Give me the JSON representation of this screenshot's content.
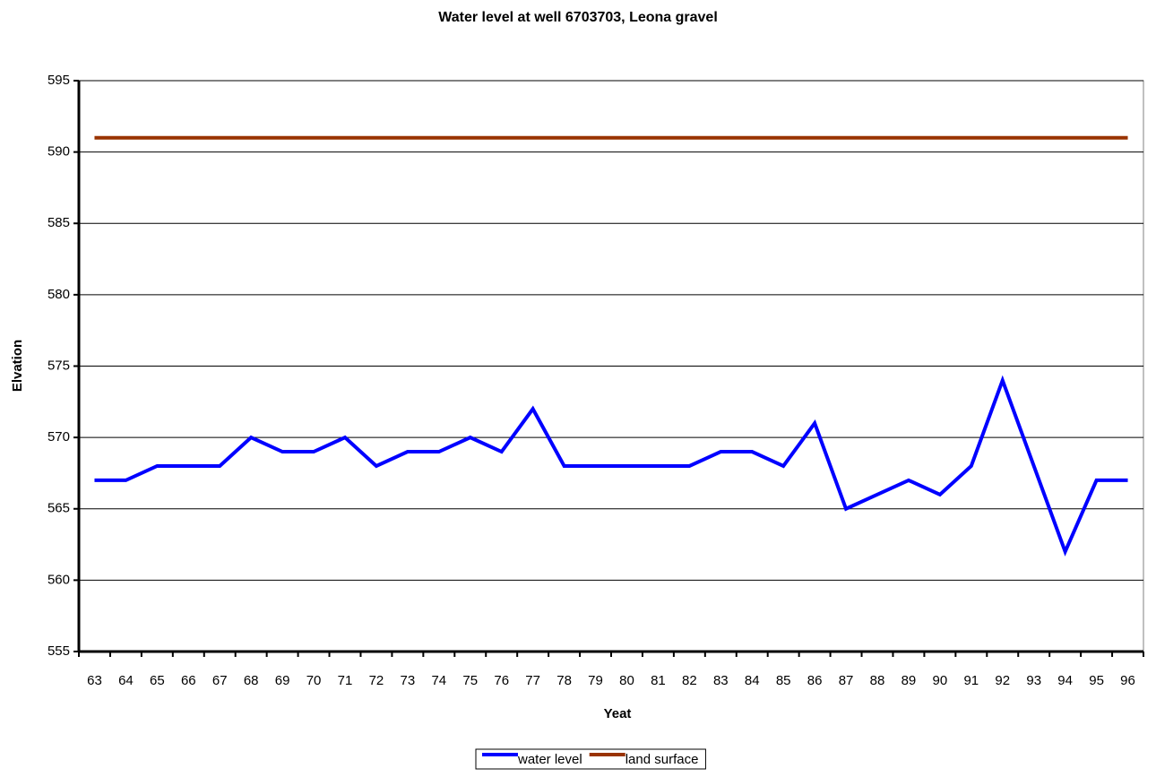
{
  "chart_data": {
    "type": "line",
    "title": "Water level at well 6703703, Leona gravel",
    "x_label": "Yeat",
    "y_label": "Elvation",
    "categories": [
      "63",
      "64",
      "65",
      "66",
      "67",
      "68",
      "69",
      "70",
      "71",
      "72",
      "73",
      "74",
      "75",
      "76",
      "77",
      "78",
      "79",
      "80",
      "81",
      "82",
      "83",
      "84",
      "85",
      "86",
      "87",
      "88",
      "89",
      "90",
      "91",
      "92",
      "93",
      "94",
      "95",
      "96"
    ],
    "series": [
      {
        "name": "water level",
        "color": "#0000ff",
        "values": [
          567,
          567,
          568,
          568,
          568,
          570,
          569,
          569,
          570,
          568,
          569,
          569,
          570,
          569,
          572,
          568,
          568,
          568,
          568,
          568,
          569,
          569,
          568,
          571,
          565,
          566,
          567,
          566,
          568,
          574,
          568,
          562,
          567,
          567
        ]
      },
      {
        "name": "land surface",
        "color": "#993300",
        "values": [
          591,
          591,
          591,
          591,
          591,
          591,
          591,
          591,
          591,
          591,
          591,
          591,
          591,
          591,
          591,
          591,
          591,
          591,
          591,
          591,
          591,
          591,
          591,
          591,
          591,
          591,
          591,
          591,
          591,
          591,
          591,
          591,
          591,
          591
        ]
      }
    ],
    "ylim": [
      555,
      595
    ],
    "yticks": [
      555,
      560,
      565,
      570,
      575,
      580,
      585,
      590,
      595
    ],
    "grid": true,
    "legend": "bottom"
  }
}
